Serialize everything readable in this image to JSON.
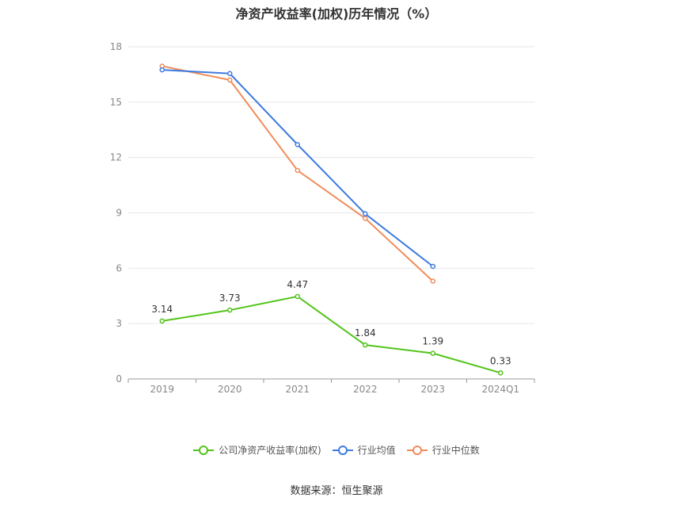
{
  "chart_data": {
    "type": "line",
    "title": "净资产收益率(加权)历年情况（%）",
    "categories": [
      "2019",
      "2020",
      "2021",
      "2022",
      "2023",
      "2024Q1"
    ],
    "yticks": [
      "0",
      "3",
      "6",
      "9",
      "12",
      "15",
      "18"
    ],
    "ylim": [
      0,
      18
    ],
    "grid": true,
    "legend_position": "bottom",
    "series": [
      {
        "name": "公司净资产收益率(加权)",
        "color": "#52c41a",
        "values": [
          3.14,
          3.73,
          4.47,
          1.84,
          1.39,
          0.33
        ],
        "labels": [
          "3.14",
          "3.73",
          "4.47",
          "1.84",
          "1.39",
          "0.33"
        ]
      },
      {
        "name": "行业均值",
        "color": "#3d7be0",
        "values": [
          16.75,
          16.55,
          12.7,
          8.95,
          6.1,
          null
        ]
      },
      {
        "name": "行业中位数",
        "color": "#f08c5a",
        "values": [
          16.95,
          16.2,
          11.3,
          8.7,
          5.3,
          null
        ]
      }
    ]
  },
  "source": "数据来源：恒生聚源"
}
